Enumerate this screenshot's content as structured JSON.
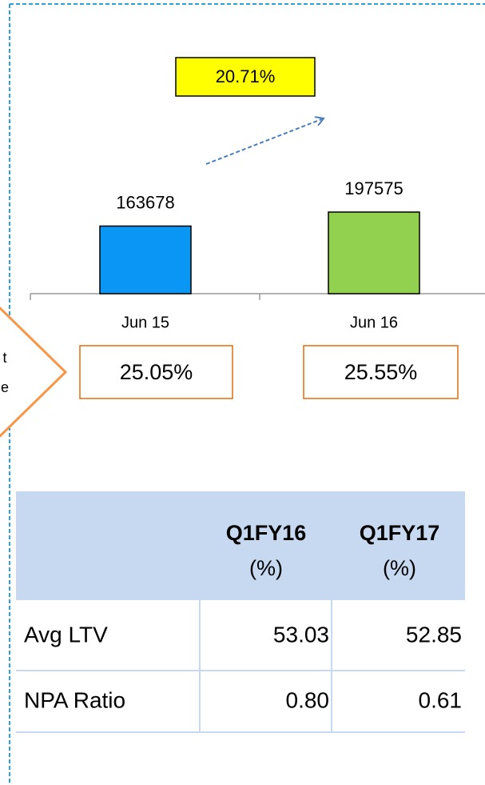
{
  "chart_data": {
    "type": "bar",
    "categories": [
      "Jun 15",
      "Jun 16"
    ],
    "values": [
      163678,
      197575
    ],
    "colors": [
      "#0a96f5",
      "#92d050"
    ],
    "growth_label": "20.71%",
    "share_labels": [
      "25.05%",
      "25.55%"
    ]
  },
  "side_arrow_text": [
    "t",
    "e"
  ],
  "table": {
    "columns": [
      {
        "title": "Q1FY16",
        "unit": "(%)"
      },
      {
        "title": "Q1FY17",
        "unit": "(%)"
      }
    ],
    "rows": [
      [
        "Avg LTV",
        "53.03",
        "52.85"
      ],
      [
        "NPA Ratio",
        "0.80",
        "0.61"
      ]
    ]
  }
}
